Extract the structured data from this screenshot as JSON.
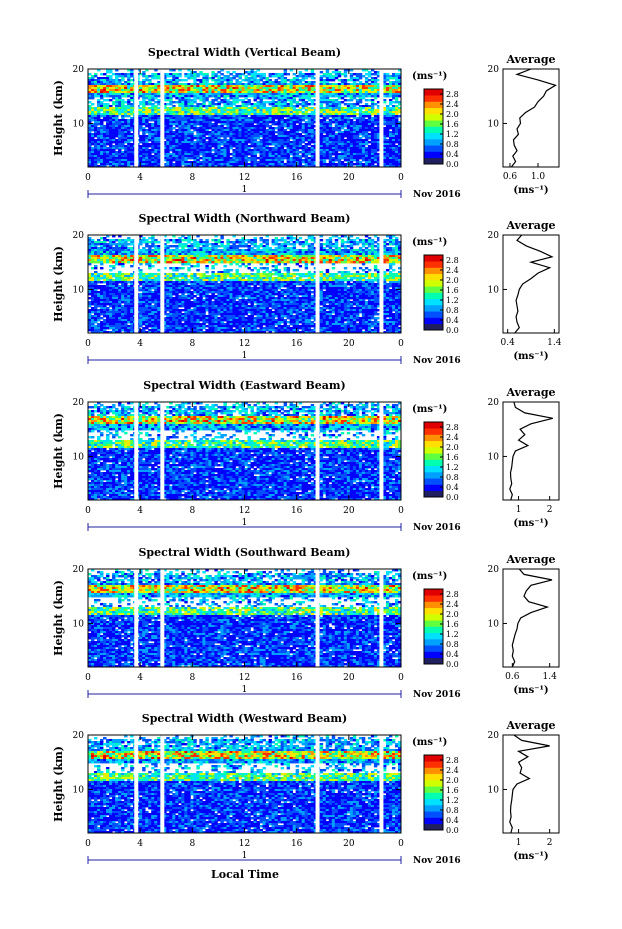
{
  "figure": {
    "xlabel": "Local Time",
    "date_label": "Nov 2016",
    "day_label": "1",
    "ylabel": "Height (km)",
    "colorbar_unit": "(ms⁻¹)",
    "average_title": "Average",
    "average_xlabel": "(ms⁻¹)"
  },
  "colors": {
    "colormap": [
      "#202060",
      "#0000ff",
      "#0050ff",
      "#00a0ff",
      "#00e0ff",
      "#00ffb0",
      "#60ff40",
      "#d0ff00",
      "#ffe000",
      "#ff9000",
      "#ff3000",
      "#e00000"
    ]
  },
  "chart_data": [
    {
      "type": "heatmap",
      "title": "Spectral Width (Vertical Beam)",
      "xticks": [
        "0",
        "4",
        "8",
        "12",
        "16",
        "20",
        "0"
      ],
      "yticks": [
        "10",
        "20"
      ],
      "xlim": [
        0,
        24
      ],
      "ylim": [
        2,
        20
      ],
      "colorbar_ticks": [
        "0.0",
        "0.4",
        "0.8",
        "1.2",
        "1.6",
        "2.0",
        "2.4",
        "2.8"
      ],
      "colorbar_range": [
        0,
        3.0
      ],
      "gaps": [
        3.7,
        5.7,
        17.6,
        22.5
      ],
      "avg_xticks": [
        "0.6",
        "1.0"
      ],
      "avg_xlim": [
        0.5,
        1.3
      ],
      "avg_profile": {
        "height": [
          2,
          3,
          4,
          5,
          6,
          7,
          8,
          9,
          10,
          11,
          12,
          13,
          14,
          15,
          16,
          17,
          18,
          19,
          20
        ],
        "value": [
          0.62,
          0.68,
          0.64,
          0.7,
          0.66,
          0.65,
          0.72,
          0.7,
          0.75,
          0.74,
          0.82,
          0.95,
          1.0,
          1.08,
          1.12,
          1.25,
          1.0,
          0.7,
          0.9
        ]
      }
    },
    {
      "type": "heatmap",
      "title": "Spectral Width (Northward Beam)",
      "xticks": [
        "0",
        "4",
        "8",
        "12",
        "16",
        "20",
        "0"
      ],
      "yticks": [
        "10",
        "20"
      ],
      "xlim": [
        0,
        24
      ],
      "ylim": [
        2,
        20
      ],
      "colorbar_ticks": [
        "0.0",
        "0.4",
        "0.8",
        "1.2",
        "1.6",
        "2.0",
        "2.4",
        "2.8"
      ],
      "colorbar_range": [
        0,
        3.0
      ],
      "gaps": [
        3.7,
        5.7,
        17.6,
        22.5
      ],
      "avg_xticks": [
        "0.4",
        "1.4"
      ],
      "avg_xlim": [
        0.3,
        1.5
      ],
      "avg_profile": {
        "height": [
          2,
          3,
          4,
          5,
          6,
          7,
          8,
          9,
          10,
          11,
          12,
          13,
          14,
          15,
          16,
          17,
          18,
          19,
          20
        ],
        "value": [
          0.55,
          0.65,
          0.6,
          0.58,
          0.62,
          0.6,
          0.58,
          0.62,
          0.65,
          0.72,
          0.9,
          1.05,
          1.3,
          0.9,
          1.35,
          1.1,
          0.8,
          0.6,
          0.7
        ]
      }
    },
    {
      "type": "heatmap",
      "title": "Spectral Width (Eastward Beam)",
      "xticks": [
        "0",
        "4",
        "8",
        "12",
        "16",
        "20",
        "0"
      ],
      "yticks": [
        "10",
        "20"
      ],
      "xlim": [
        0,
        24
      ],
      "ylim": [
        2,
        20
      ],
      "colorbar_ticks": [
        "0.0",
        "0.4",
        "0.8",
        "1.2",
        "1.6",
        "2.0",
        "2.4",
        "2.8"
      ],
      "colorbar_range": [
        0,
        3.0
      ],
      "gaps": [
        3.7,
        5.7,
        17.6,
        22.5
      ],
      "avg_xticks": [
        "1",
        "2"
      ],
      "avg_xlim": [
        0.5,
        2.3
      ],
      "avg_profile": {
        "height": [
          2,
          3,
          4,
          5,
          6,
          7,
          8,
          9,
          10,
          11,
          12,
          13,
          14,
          15,
          16,
          17,
          18,
          19,
          20
        ],
        "value": [
          0.75,
          0.8,
          0.72,
          0.78,
          0.75,
          0.74,
          0.78,
          0.8,
          0.82,
          0.9,
          1.3,
          1.0,
          1.2,
          1.05,
          1.4,
          2.1,
          1.2,
          0.9,
          0.85
        ]
      }
    },
    {
      "type": "heatmap",
      "title": "Spectral Width (Southward Beam)",
      "xticks": [
        "0",
        "4",
        "8",
        "12",
        "16",
        "20",
        "0"
      ],
      "yticks": [
        "10",
        "20"
      ],
      "xlim": [
        0,
        24
      ],
      "ylim": [
        2,
        20
      ],
      "colorbar_ticks": [
        "0.0",
        "0.4",
        "0.8",
        "1.2",
        "1.6",
        "2.0",
        "2.4",
        "2.8"
      ],
      "colorbar_range": [
        0,
        3.0
      ],
      "gaps": [
        3.7,
        5.7,
        17.6,
        22.5
      ],
      "avg_xticks": [
        "0.6",
        "1.4"
      ],
      "avg_xlim": [
        0.4,
        1.6
      ],
      "avg_profile": {
        "height": [
          2,
          3,
          4,
          5,
          6,
          7,
          8,
          9,
          10,
          11,
          12,
          13,
          14,
          15,
          16,
          17,
          18,
          19,
          20
        ],
        "value": [
          0.6,
          0.65,
          0.6,
          0.62,
          0.6,
          0.63,
          0.66,
          0.7,
          0.72,
          0.78,
          1.0,
          1.35,
          0.95,
          0.85,
          0.9,
          1.0,
          1.45,
          0.85,
          0.75
        ]
      }
    },
    {
      "type": "heatmap",
      "title": "Spectral Width (Westward Beam)",
      "xticks": [
        "0",
        "4",
        "8",
        "12",
        "16",
        "20",
        "0"
      ],
      "yticks": [
        "10",
        "20"
      ],
      "xlim": [
        0,
        24
      ],
      "ylim": [
        2,
        20
      ],
      "colorbar_ticks": [
        "0.0",
        "0.4",
        "0.8",
        "1.2",
        "1.6",
        "2.0",
        "2.4",
        "2.8"
      ],
      "colorbar_range": [
        0,
        3.0
      ],
      "gaps": [
        3.7,
        5.7,
        17.6,
        22.5
      ],
      "avg_xticks": [
        "1",
        "2"
      ],
      "avg_xlim": [
        0.5,
        2.3
      ],
      "avg_profile": {
        "height": [
          2,
          3,
          4,
          5,
          6,
          7,
          8,
          9,
          10,
          11,
          12,
          13,
          14,
          15,
          16,
          17,
          18,
          19,
          20
        ],
        "value": [
          0.75,
          0.8,
          0.72,
          0.76,
          0.74,
          0.75,
          0.78,
          0.8,
          0.82,
          0.95,
          1.35,
          1.05,
          1.1,
          1.0,
          1.3,
          1.0,
          2.0,
          1.1,
          0.85
        ]
      }
    }
  ]
}
